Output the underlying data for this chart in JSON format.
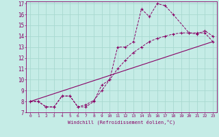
{
  "xlabel": "Windchill (Refroidissement éolien,°C)",
  "background_color": "#c5ece6",
  "grid_color": "#a8d8d0",
  "line_color": "#880066",
  "xlim": [
    -0.5,
    23.5
  ],
  "ylim": [
    7,
    17.2
  ],
  "xticks": [
    0,
    1,
    2,
    3,
    4,
    5,
    6,
    7,
    8,
    9,
    10,
    11,
    12,
    13,
    14,
    15,
    16,
    17,
    18,
    19,
    20,
    21,
    22,
    23
  ],
  "yticks": [
    7,
    8,
    9,
    10,
    11,
    12,
    13,
    14,
    15,
    16,
    17
  ],
  "series1_x": [
    0,
    1,
    2,
    3,
    4,
    5,
    6,
    7,
    8,
    9,
    10,
    11,
    12,
    13,
    14,
    15,
    16,
    17,
    18,
    20,
    21,
    22,
    23
  ],
  "series1_y": [
    8.0,
    8.0,
    7.5,
    7.5,
    8.5,
    8.5,
    7.5,
    7.5,
    8.0,
    9.5,
    10.0,
    13.0,
    13.0,
    13.5,
    16.5,
    15.8,
    17.0,
    16.8,
    16.0,
    14.3,
    14.2,
    14.5,
    14.0
  ],
  "series2_x": [
    0,
    1,
    2,
    3,
    4,
    5,
    6,
    7,
    8,
    9,
    10,
    11,
    12,
    13,
    14,
    15,
    16,
    17,
    18,
    19,
    20,
    21,
    22,
    23
  ],
  "series2_y": [
    8.0,
    8.0,
    7.5,
    7.5,
    8.5,
    8.5,
    7.5,
    7.7,
    8.1,
    9.0,
    10.0,
    11.0,
    11.8,
    12.5,
    13.0,
    13.5,
    13.8,
    14.0,
    14.2,
    14.3,
    14.3,
    14.3,
    14.3,
    13.5
  ],
  "series3_x": [
    0,
    23
  ],
  "series3_y": [
    8.0,
    13.5
  ]
}
